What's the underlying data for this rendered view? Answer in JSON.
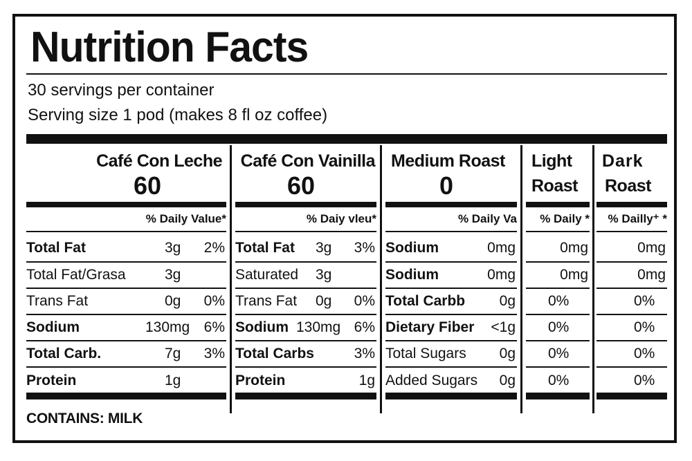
{
  "title": "Nutrition Facts",
  "servings_per_container": "30 servings per container",
  "serving_size": "Serving size 1 pod (makes 8 fl oz coffee)",
  "columns": [
    {
      "name": "Café Con Leche",
      "calories": "60",
      "daily_value_header": "% Daily Value*",
      "rows": [
        {
          "nutrient": "Total Fat",
          "bold": true,
          "amount": "3g",
          "pct": "2%"
        },
        {
          "nutrient": "Total Fat/Grasa",
          "bold": false,
          "amount": "3g",
          "pct": ""
        },
        {
          "nutrient": "Trans Fat",
          "bold": false,
          "amount": "0g",
          "pct": "0%"
        },
        {
          "nutrient": "Sodium",
          "bold": true,
          "amount": "130mg",
          "pct": "6%"
        },
        {
          "nutrient": "Total Carb.",
          "bold": true,
          "amount": "7g",
          "pct": "3%"
        },
        {
          "nutrient": "Protein",
          "bold": true,
          "amount": "1g",
          "pct": ""
        }
      ]
    },
    {
      "name": "Café Con Vainilla",
      "calories": "60",
      "daily_value_header": "% Daiy vleu*",
      "rows": [
        {
          "nutrient": "Total Fat",
          "bold": true,
          "amount": "3g",
          "pct": "3%"
        },
        {
          "nutrient": "Saturated",
          "bold": false,
          "amount": "3g",
          "pct": ""
        },
        {
          "nutrient": "Trans Fat",
          "bold": false,
          "amount": "0g",
          "pct": "0%"
        },
        {
          "nutrient": "Sodium",
          "bold": true,
          "amount": "130mg",
          "pct": "6%"
        },
        {
          "nutrient": "Total Carbs",
          "bold": true,
          "amount": "",
          "pct": "3%"
        },
        {
          "nutrient": "Protein",
          "bold": true,
          "amount": "",
          "pct": "1g"
        }
      ]
    },
    {
      "name": "Medium Roast",
      "calories": "0",
      "daily_value_header": "% Daily Va",
      "rows": [
        {
          "nutrient": "Sodium",
          "bold": true,
          "amount": "0mg",
          "pct": ""
        },
        {
          "nutrient": "Sodium",
          "bold": true,
          "amount": "0mg",
          "pct": ""
        },
        {
          "nutrient": "Total Carbb",
          "bold": true,
          "amount": "0g",
          "pct": ""
        },
        {
          "nutrient": "Dietary Fiber",
          "bold": true,
          "amount": "<1g",
          "pct": ""
        },
        {
          "nutrient": "Total Sugars",
          "bold": false,
          "amount": "0g",
          "pct": ""
        },
        {
          "nutrient": "Added Sugars",
          "bold": false,
          "amount": "0g",
          "pct": ""
        }
      ]
    },
    {
      "name_line1": "Light",
      "name_line2": "Roast",
      "daily_value_header": "% Daily *",
      "values": [
        "0mg",
        "0mg",
        "0%",
        "0%",
        "0%",
        "0%"
      ]
    },
    {
      "name_line1": "Dark",
      "name_line2": "Roast",
      "daily_value_header": "% Dailly⁺ *",
      "values": [
        "0mg",
        "0mg",
        "0%",
        "0%",
        "0%",
        "0%"
      ]
    }
  ],
  "contains": "CONTAINS: MILK"
}
